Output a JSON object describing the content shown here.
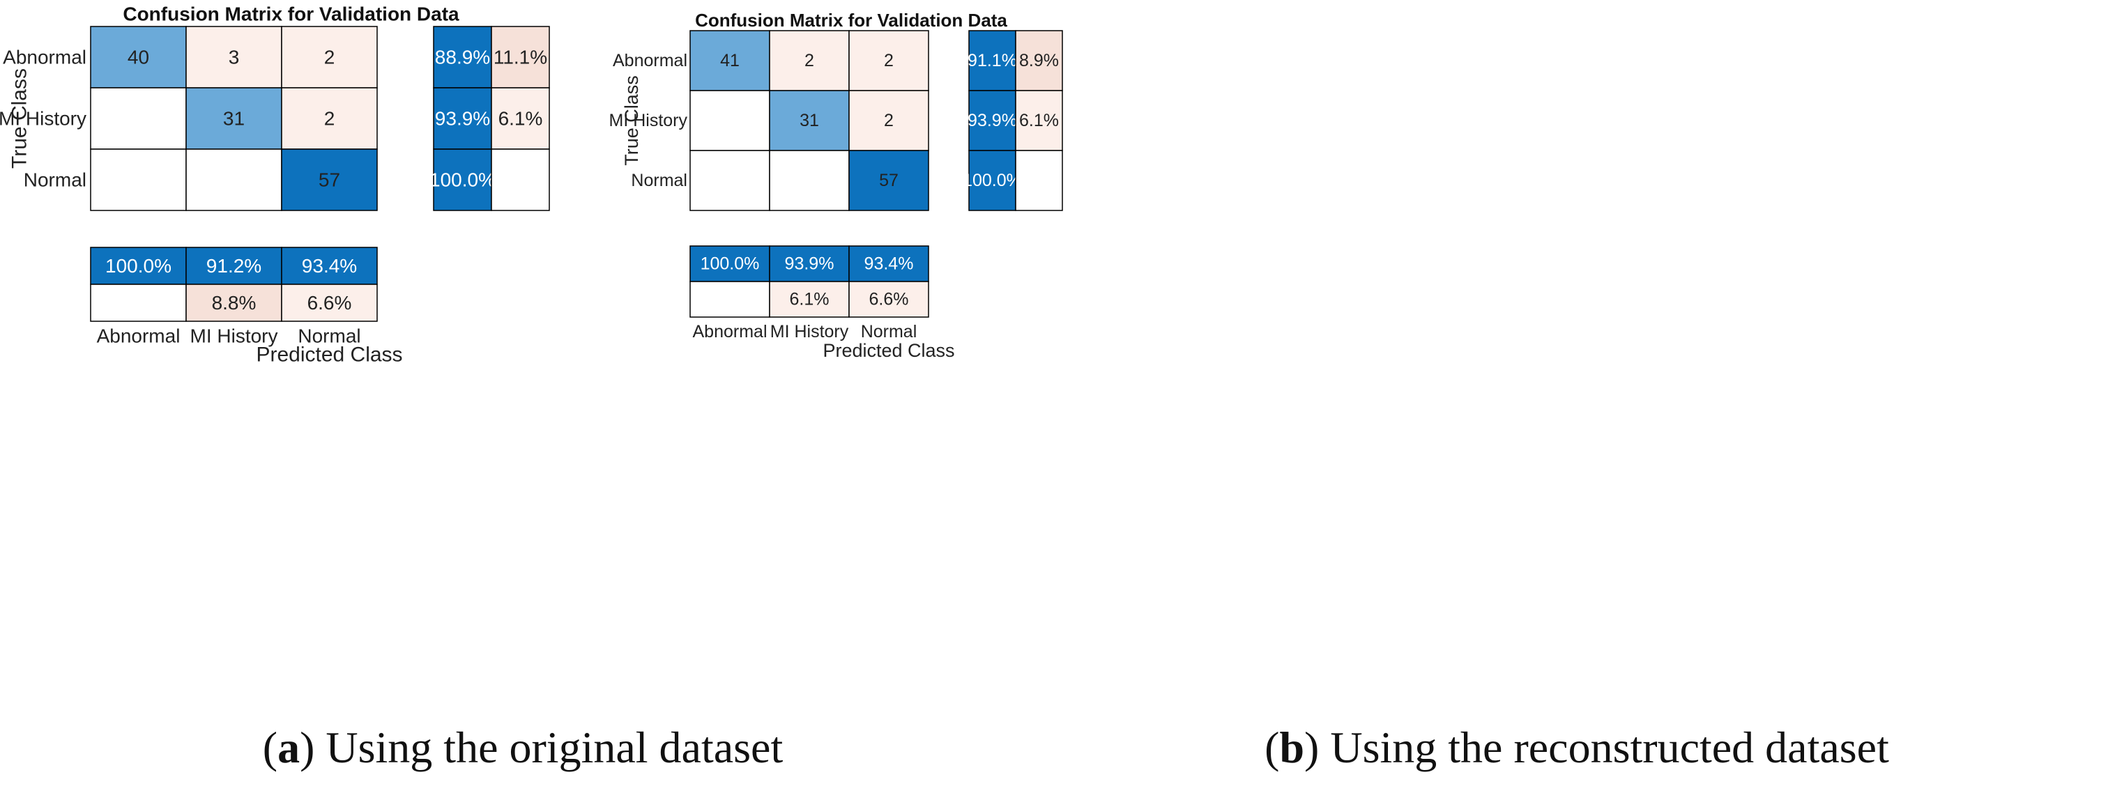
{
  "colors": {
    "high": "#0d72bd",
    "mid": "#4c98d1",
    "light": "#6baad9",
    "pale": "#fcefea",
    "paleStrong": "#f6e1d9",
    "border": "#000000",
    "text": "#222222",
    "textOnDark": "#ffffff"
  },
  "chart_data": [
    {
      "type": "heatmap",
      "title": "Confusion Matrix for Validation Data",
      "xlabel": "Predicted Class",
      "ylabel": "True Class",
      "classes": [
        "Abnormal",
        "MI History",
        "Normal"
      ],
      "matrix": [
        [
          40,
          3,
          2
        ],
        [
          0,
          31,
          2
        ],
        [
          0,
          0,
          57
        ]
      ],
      "row_summary": [
        [
          "88.9%",
          "11.1%"
        ],
        [
          "93.9%",
          "6.1%"
        ],
        [
          "100.0%",
          ""
        ]
      ],
      "column_summary": [
        [
          "100.0%",
          "91.2%",
          "93.4%"
        ],
        [
          "",
          "8.8%",
          "6.6%"
        ]
      ],
      "caption_label": "a",
      "caption_text": "Using the original dataset"
    },
    {
      "type": "heatmap",
      "title": "Confusion Matrix for Validation Data",
      "xlabel": "Predicted Class",
      "ylabel": "True Class",
      "classes": [
        "Abnormal",
        "MI History",
        "Normal"
      ],
      "matrix": [
        [
          41,
          2,
          2
        ],
        [
          0,
          31,
          2
        ],
        [
          0,
          0,
          57
        ]
      ],
      "row_summary": [
        [
          "91.1%",
          "8.9%"
        ],
        [
          "93.9%",
          "6.1%"
        ],
        [
          "100.0%",
          ""
        ]
      ],
      "column_summary": [
        [
          "100.0%",
          "93.9%",
          "93.4%"
        ],
        [
          "",
          "6.1%",
          "6.6%"
        ]
      ],
      "caption_label": "b",
      "caption_text": "Using the reconstructed dataset"
    }
  ]
}
